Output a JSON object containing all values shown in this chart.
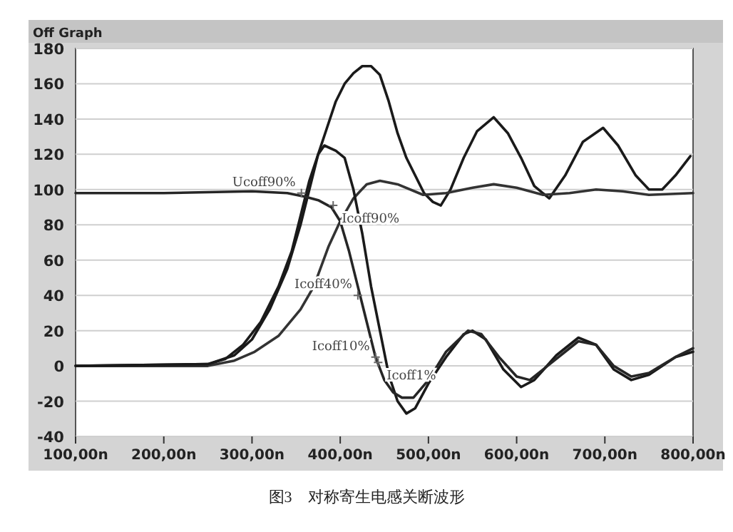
{
  "chart_data": {
    "type": "line",
    "title": "Off Graph",
    "annotations": [
      {
        "text": "Ucoff90%",
        "x": 356,
        "y": 98
      },
      {
        "text": "Icoff90%",
        "x": 392,
        "y": 91
      },
      {
        "text": "Icoff40%",
        "x": 420,
        "y": 40
      },
      {
        "text": "Icoff10%",
        "x": 440,
        "y": 5
      },
      {
        "text": "Icoff1%",
        "x": 443,
        "y": 2
      },
      "图3　对称寄生电感关断波形"
    ],
    "xlim": [
      100,
      800
    ],
    "ylim": [
      -40,
      180
    ],
    "xticks": [
      {
        "value": 100,
        "label": "100,00n"
      },
      {
        "value": 200,
        "label": "200,00n"
      },
      {
        "value": 300,
        "label": "300,00n"
      },
      {
        "value": 400,
        "label": "400,00n"
      },
      {
        "value": 500,
        "label": "500,00n"
      },
      {
        "value": 600,
        "label": "600,00n"
      },
      {
        "value": 700,
        "label": "700,00n"
      },
      {
        "value": 800,
        "label": "800,00n"
      }
    ],
    "yticks": [
      -40,
      -20,
      0,
      20,
      40,
      60,
      80,
      100,
      120,
      140,
      160,
      180
    ],
    "grid": "y",
    "series": [
      {
        "color": "#1a1a1a",
        "x": [
          100,
          250,
          280,
          300,
          320,
          340,
          355,
          365,
          375,
          385,
          395,
          405,
          415,
          425,
          435,
          445,
          455,
          465,
          475,
          485,
          495,
          505,
          514,
          525,
          540,
          555,
          574,
          590,
          605,
          620,
          637,
          655,
          675,
          698,
          715,
          735,
          750,
          765,
          780,
          797
        ],
        "values": [
          0,
          1,
          6,
          15,
          32,
          55,
          80,
          100,
          120,
          135,
          150,
          160,
          166,
          170,
          170,
          165,
          150,
          132,
          118,
          108,
          98,
          93,
          91,
          100,
          118,
          133,
          141,
          132,
          118,
          102,
          95,
          108,
          127,
          135,
          125,
          108,
          100,
          100,
          108,
          119
        ]
      },
      {
        "color": "#333333",
        "x": [
          100,
          250,
          280,
          303,
          330,
          355,
          370,
          387,
          400,
          415,
          430,
          445,
          465,
          494,
          520,
          550,
          574,
          600,
          630,
          660,
          690,
          720,
          750,
          800
        ],
        "values": [
          0,
          0,
          3,
          8,
          17,
          32,
          45,
          68,
          82,
          95,
          103,
          105,
          103,
          97,
          98,
          101,
          103,
          101,
          97,
          98,
          100,
          99,
          97,
          98
        ]
      },
      {
        "color": "#1a1a1a",
        "x": [
          100,
          250,
          270,
          290,
          310,
          330,
          345,
          355,
          365,
          375,
          382,
          395,
          405,
          415,
          425,
          435,
          445,
          455,
          465,
          475,
          485,
          500,
          520,
          540,
          550,
          565,
          585,
          605,
          620,
          645,
          670,
          690,
          710,
          730,
          750,
          780,
          800
        ],
        "values": [
          0,
          1,
          4,
          12,
          25,
          45,
          65,
          85,
          105,
          120,
          125,
          122,
          118,
          100,
          75,
          45,
          20,
          -5,
          -20,
          -27,
          -24,
          -10,
          5,
          18,
          20,
          15,
          -2,
          -12,
          -8,
          6,
          16,
          12,
          -2,
          -8,
          -5,
          5,
          8
        ]
      },
      {
        "color": "#262626",
        "x": [
          100,
          200,
          300,
          340,
          360,
          375,
          390,
          400,
          410,
          420,
          430,
          440,
          450,
          460,
          470,
          483,
          500,
          520,
          545,
          560,
          580,
          600,
          615,
          640,
          670,
          690,
          710,
          730,
          750,
          780,
          800
        ],
        "values": [
          98,
          98,
          99,
          98,
          96,
          94,
          90,
          82,
          65,
          45,
          25,
          5,
          -8,
          -15,
          -18,
          -18,
          -8,
          8,
          20,
          18,
          5,
          -6,
          -8,
          2,
          14,
          12,
          0,
          -6,
          -4,
          5,
          10
        ]
      }
    ]
  }
}
